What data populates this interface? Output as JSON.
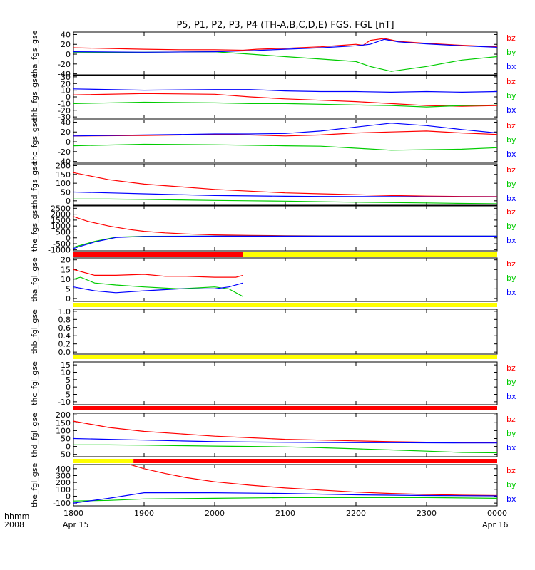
{
  "title": "P5, P1, P2, P3, P4 (TH-A,B,C,D,E) FGS, FGL [nT]",
  "footer": {
    "hhmm": "hhmm",
    "year": "2008",
    "start_date": "Apr 15",
    "end_date": "Apr 16"
  },
  "colors": {
    "bx": "#0000ff",
    "by": "#00cc00",
    "bz": "#ff0000",
    "bar_red": "#ff0000",
    "bar_yellow": "#ffff00",
    "axis": "#000000"
  },
  "chart_data": {
    "type": "line",
    "x_ticks": [
      "1800",
      "1900",
      "2000",
      "2100",
      "2200",
      "2300",
      "0000"
    ],
    "x_range": [
      18.0,
      24.0
    ],
    "panels": [
      {
        "ylabel": "tha_fgs_gse",
        "yticks": [
          -40,
          -20,
          0,
          20,
          40
        ],
        "ylim": [
          -42,
          45
        ],
        "legend": [
          "bz",
          "by",
          "bx"
        ],
        "series": [
          {
            "name": "bz",
            "x": [
              18.0,
              19.0,
              19.5,
              20.0,
              20.4,
              20.6,
              21.0,
              21.5,
              21.8,
              22.0,
              22.1,
              22.2,
              22.4,
              22.6,
              23.0,
              23.5,
              24.0
            ],
            "y": [
              13,
              10,
              9,
              9,
              8,
              10,
              12,
              15,
              18,
              20,
              18,
              28,
              32,
              26,
              22,
              18,
              15
            ]
          },
          {
            "name": "by",
            "x": [
              18.0,
              19.0,
              20.0,
              20.5,
              21.0,
              21.5,
              22.0,
              22.2,
              22.5,
              23.0,
              23.5,
              24.0
            ],
            "y": [
              3,
              4,
              5,
              0,
              -5,
              -10,
              -15,
              -25,
              -35,
              -25,
              -12,
              -5
            ]
          },
          {
            "name": "bx",
            "x": [
              18.0,
              19.0,
              20.0,
              20.5,
              21.0,
              21.5,
              22.0,
              22.2,
              22.4,
              22.6,
              23.0,
              23.5,
              24.0
            ],
            "y": [
              5,
              4,
              5,
              7,
              10,
              13,
              17,
              20,
              30,
              25,
              21,
              17,
              14
            ]
          }
        ]
      },
      {
        "ylabel": "thb_fgs_gse",
        "yticks": [
          -30,
          -20,
          -10,
          0,
          10,
          20,
          30
        ],
        "ylim": [
          -32,
          32
        ],
        "legend": [
          "bz",
          "by",
          "bx"
        ],
        "series": [
          {
            "name": "bz",
            "x": [
              18.0,
              19.0,
              20.0,
              20.5,
              21.0,
              21.5,
              22.0,
              22.5,
              23.0,
              23.5,
              24.0
            ],
            "y": [
              3,
              5,
              4,
              0,
              -3,
              -5,
              -7,
              -10,
              -13,
              -14,
              -13
            ]
          },
          {
            "name": "by",
            "x": [
              18.0,
              19.0,
              20.0,
              20.5,
              21.0,
              21.5,
              22.0,
              22.5,
              23.0,
              23.5,
              24.0
            ],
            "y": [
              -10,
              -8,
              -9,
              -10,
              -10,
              -11,
              -12,
              -13,
              -15,
              -13,
              -12
            ]
          },
          {
            "name": "bx",
            "x": [
              18.0,
              19.0,
              20.0,
              20.5,
              21.0,
              21.5,
              22.0,
              22.5,
              23.0,
              23.5,
              24.0
            ],
            "y": [
              12,
              10,
              11,
              11,
              9,
              8,
              8,
              7,
              8,
              7,
              8
            ]
          }
        ]
      },
      {
        "ylabel": "thc_fgs_gse",
        "yticks": [
          -40,
          -20,
          0,
          20,
          40
        ],
        "ylim": [
          -42,
          45
        ],
        "legend": [
          "bz",
          "by",
          "bx"
        ],
        "series": [
          {
            "name": "bz",
            "x": [
              18.0,
              19.0,
              20.0,
              20.5,
              21.0,
              21.5,
              22.0,
              22.5,
              23.0,
              23.5,
              24.0
            ],
            "y": [
              12,
              13,
              15,
              14,
              12,
              14,
              18,
              20,
              22,
              18,
              15
            ]
          },
          {
            "name": "by",
            "x": [
              18.0,
              19.0,
              20.0,
              20.5,
              21.0,
              21.5,
              22.0,
              22.5,
              23.0,
              23.5,
              24.0
            ],
            "y": [
              -8,
              -5,
              -6,
              -7,
              -8,
              -9,
              -13,
              -17,
              -16,
              -15,
              -12
            ]
          },
          {
            "name": "bx",
            "x": [
              18.0,
              19.0,
              20.0,
              20.5,
              21.0,
              21.5,
              22.0,
              22.5,
              23.0,
              23.5,
              24.0
            ],
            "y": [
              12,
              14,
              16,
              16,
              17,
              22,
              30,
              38,
              33,
              25,
              18
            ]
          }
        ]
      },
      {
        "ylabel": "thd_fgs_gse",
        "yticks": [
          0,
          50,
          100,
          150,
          200
        ],
        "ylim": [
          -25,
          210
        ],
        "legend": [
          "bz",
          "by",
          "bx"
        ],
        "series": [
          {
            "name": "bz",
            "x": [
              18.0,
              18.5,
              19.0,
              19.5,
              20.0,
              20.5,
              21.0,
              21.5,
              22.0,
              22.5,
              23.0,
              23.5,
              24.0
            ],
            "y": [
              160,
              120,
              95,
              80,
              65,
              55,
              45,
              40,
              35,
              30,
              27,
              25,
              24
            ]
          },
          {
            "name": "by",
            "x": [
              18.0,
              18.5,
              19.0,
              19.5,
              20.0,
              20.5,
              21.0,
              21.5,
              22.0,
              22.5,
              23.0,
              23.5,
              24.0
            ],
            "y": [
              10,
              10,
              8,
              5,
              2,
              0,
              -2,
              -5,
              -8,
              -10,
              -12,
              -15,
              -17
            ]
          },
          {
            "name": "bx",
            "x": [
              18.0,
              18.5,
              19.0,
              19.5,
              20.0,
              20.5,
              21.0,
              21.5,
              22.0,
              22.5,
              23.0,
              23.5,
              24.0
            ],
            "y": [
              50,
              45,
              40,
              35,
              30,
              28,
              26,
              25,
              24,
              24,
              23,
              22,
              22
            ]
          }
        ]
      },
      {
        "ylabel": "the_fgs_gse",
        "yticks": [
          -1000,
          -500,
          0,
          500,
          1000,
          1500,
          2000,
          2500
        ],
        "ylim": [
          -1100,
          2700
        ],
        "legend": [
          "bz",
          "by",
          "bx"
        ],
        "series": [
          {
            "name": "bz",
            "x": [
              18.0,
              18.2,
              18.5,
              18.8,
              19.0,
              19.3,
              19.6,
              20.0,
              20.5,
              21.0,
              22.0,
              23.0,
              24.0
            ],
            "y": [
              1800,
              1400,
              1000,
              700,
              550,
              420,
              330,
              250,
              200,
              180,
              150,
              140,
              130
            ]
          },
          {
            "name": "by",
            "x": [
              18.0,
              18.3,
              18.6,
              19.0,
              20.0,
              21.0,
              22.0,
              23.0,
              24.0
            ],
            "y": [
              -800,
              -300,
              50,
              130,
              140,
              140,
              140,
              140,
              140
            ]
          },
          {
            "name": "bx",
            "x": [
              18.0,
              18.3,
              18.6,
              19.0,
              20.0,
              21.0,
              22.0,
              23.0,
              24.0
            ],
            "y": [
              -900,
              -350,
              30,
              120,
              140,
              140,
              140,
              140,
              140
            ]
          }
        ]
      },
      {
        "ylabel": "tha_fgl_gse",
        "yticks": [
          0,
          5,
          10,
          15,
          20
        ],
        "ylim": [
          -1.5,
          21
        ],
        "legend": [
          "bz",
          "by",
          "bx"
        ],
        "series": [
          {
            "name": "bz",
            "x": [
              18.0,
              18.3,
              18.6,
              19.0,
              19.3,
              19.6,
              20.0,
              20.3,
              20.4
            ],
            "y": [
              15,
              12,
              12,
              12.5,
              11.5,
              11.5,
              11,
              11,
              12
            ]
          },
          {
            "name": "by",
            "x": [
              18.0,
              18.1,
              18.3,
              18.6,
              19.0,
              19.5,
              20.0,
              20.2,
              20.4
            ],
            "y": [
              10,
              11,
              8,
              7,
              6,
              5,
              6,
              5,
              1
            ]
          },
          {
            "name": "bx",
            "x": [
              18.0,
              18.3,
              18.6,
              19.0,
              19.5,
              20.0,
              20.2,
              20.4
            ],
            "y": [
              6,
              4,
              3,
              4,
              5,
              5,
              6,
              8
            ]
          }
        ]
      },
      {
        "ylabel": "thb_fgl_gse",
        "yticks": [
          0.0,
          0.2,
          0.4,
          0.6,
          0.8,
          1.0
        ],
        "ylim": [
          -0.05,
          1.05
        ],
        "legend": [],
        "series": []
      },
      {
        "ylabel": "thc_fgl_gse",
        "yticks": [
          -10,
          -5,
          0,
          5,
          10,
          15
        ],
        "ylim": [
          -12,
          17
        ],
        "legend": [
          "bz",
          "by",
          "bx"
        ],
        "series": []
      },
      {
        "ylabel": "thd_fgl_gse",
        "yticks": [
          -50,
          0,
          50,
          100,
          150,
          200
        ],
        "ylim": [
          -65,
          210
        ],
        "legend": [
          "bz",
          "by",
          "bx"
        ],
        "series": [
          {
            "name": "bz",
            "x": [
              18.0,
              18.5,
              19.0,
              19.5,
              20.0,
              20.5,
              21.0,
              21.5,
              22.0,
              22.5,
              23.0,
              23.5,
              24.0
            ],
            "y": [
              160,
              120,
              95,
              80,
              65,
              55,
              45,
              40,
              35,
              30,
              27,
              25,
              24
            ]
          },
          {
            "name": "by",
            "x": [
              18.0,
              18.5,
              19.0,
              19.5,
              20.0,
              20.5,
              21.0,
              21.5,
              22.0,
              22.5,
              23.0,
              23.5,
              24.0
            ],
            "y": [
              10,
              10,
              8,
              5,
              2,
              0,
              -3,
              -8,
              -15,
              -22,
              -30,
              -38,
              -40
            ]
          },
          {
            "name": "bx",
            "x": [
              18.0,
              18.5,
              19.0,
              19.5,
              20.0,
              20.5,
              21.0,
              21.5,
              22.0,
              22.5,
              23.0,
              23.5,
              24.0
            ],
            "y": [
              50,
              45,
              40,
              35,
              30,
              28,
              26,
              25,
              24,
              24,
              23,
              22,
              22
            ]
          }
        ]
      },
      {
        "ylabel": "the_fgl_gse",
        "yticks": [
          -100,
          0,
          100,
          200,
          300,
          400
        ],
        "ylim": [
          -140,
          460
        ],
        "legend": [
          "bz",
          "by",
          "bx"
        ],
        "series": [
          {
            "name": "bz",
            "x": [
              18.8,
              19.0,
              19.3,
              19.6,
              20.0,
              20.5,
              21.0,
              21.5,
              22.0,
              22.5,
              23.0,
              23.5,
              24.0
            ],
            "y": [
              460,
              400,
              330,
              270,
              210,
              160,
              120,
              90,
              60,
              40,
              25,
              15,
              10
            ]
          },
          {
            "name": "by",
            "x": [
              18.0,
              18.5,
              19.0,
              20.0,
              21.0,
              22.0,
              23.0,
              24.0
            ],
            "y": [
              -70,
              -60,
              -40,
              -30,
              -20,
              -20,
              -20,
              -30
            ]
          },
          {
            "name": "bx",
            "x": [
              18.0,
              18.5,
              19.0,
              19.5,
              20.0,
              21.0,
              22.0,
              23.0,
              24.0
            ],
            "y": [
              -100,
              -30,
              50,
              50,
              50,
              40,
              20,
              10,
              5
            ]
          }
        ]
      }
    ]
  }
}
